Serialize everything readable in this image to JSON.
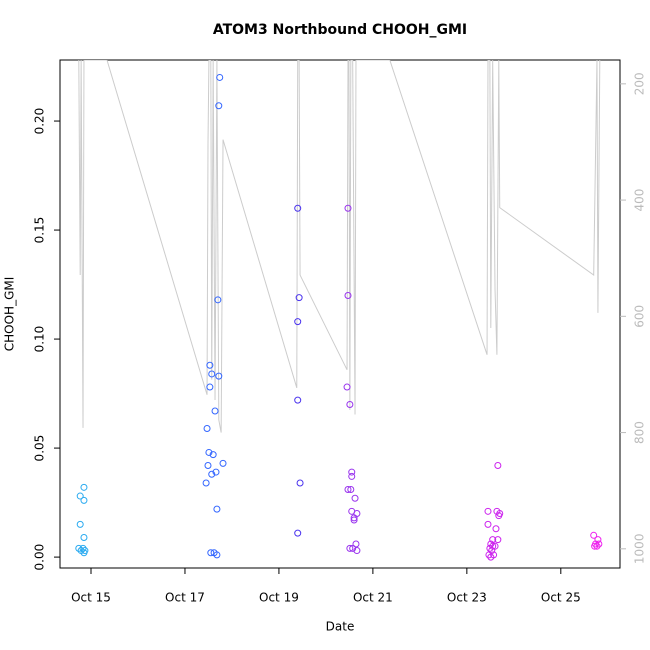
{
  "chart_data": {
    "type": "scatter",
    "title": "ATOM3 Northbound CHOOH_GMI",
    "x_label": "Date",
    "y_label": "CHOOH_GMI",
    "xlim": [
      14.34,
      26.26
    ],
    "xticks": [
      {
        "value": 15,
        "label": "Oct 15"
      },
      {
        "value": 17,
        "label": "Oct 17"
      },
      {
        "value": 19,
        "label": "Oct 19"
      },
      {
        "value": 21,
        "label": "Oct 21"
      },
      {
        "value": 23,
        "label": "Oct 23"
      },
      {
        "value": 25,
        "label": "Oct 25"
      }
    ],
    "ylim": [
      -0.005,
      0.228
    ],
    "yticks": [
      {
        "value": 0,
        "label": "0.00"
      },
      0.05,
      {
        "value": 0.1,
        "label": "0.10"
      },
      0.15,
      {
        "value": 0.2,
        "label": "0.20"
      }
    ],
    "y2lim": [
      1033,
      159
    ],
    "y2ticks": [
      200,
      400,
      600,
      800,
      1000
    ],
    "series": [
      {
        "color": "#29aaf0",
        "x": [
          14.77,
          14.85,
          14.85,
          14.77,
          14.85,
          14.74,
          14.79,
          14.83,
          14.87,
          14.85
        ],
        "values": [
          0.028,
          0.032,
          0.026,
          0.015,
          0.009,
          0.004,
          0.003,
          0.004,
          0.003,
          0.002
        ]
      },
      {
        "color": "#3366ff",
        "x": [
          17.74,
          17.72,
          17.7,
          17.53,
          17.57,
          17.72,
          17.53,
          17.64,
          17.47,
          17.51,
          17.6,
          17.49,
          17.81,
          17.66,
          17.57,
          17.45,
          17.68,
          17.55,
          17.62,
          17.68
        ],
        "values": [
          0.22,
          0.207,
          0.118,
          0.088,
          0.084,
          0.083,
          0.078,
          0.067,
          0.059,
          0.048,
          0.047,
          0.042,
          0.043,
          0.039,
          0.038,
          0.034,
          0.022,
          0.002,
          0.002,
          0.001
        ]
      },
      {
        "color": "#4a33ee",
        "x": [
          19.4,
          19.43,
          19.4,
          19.4,
          19.45,
          19.4
        ],
        "values": [
          0.16,
          0.119,
          0.108,
          0.072,
          0.034,
          0.011
        ]
      },
      {
        "color": "#9933ee",
        "x": [
          20.47,
          20.47,
          20.45,
          20.51,
          20.55,
          20.55,
          20.47,
          20.53,
          20.62,
          20.55,
          20.66,
          20.6,
          20.6,
          20.64,
          20.51,
          20.57,
          20.66
        ],
        "values": [
          0.16,
          0.12,
          0.078,
          0.07,
          0.039,
          0.037,
          0.031,
          0.031,
          0.027,
          0.021,
          0.02,
          0.018,
          0.017,
          0.006,
          0.004,
          0.004,
          0.003
        ]
      },
      {
        "color": "#cc22ee",
        "x": [
          23.66,
          23.45,
          23.64,
          23.7,
          23.68,
          23.45,
          23.62,
          23.55,
          23.66,
          23.51,
          23.55,
          23.6,
          23.49,
          23.53,
          23.47,
          23.51,
          23.57
        ],
        "values": [
          0.042,
          0.021,
          0.021,
          0.02,
          0.019,
          0.015,
          0.013,
          0.008,
          0.008,
          0.006,
          0.005,
          0.005,
          0.004,
          0.003,
          0.001,
          0.0,
          0.001
        ]
      },
      {
        "color": "#ee22ee",
        "x": [
          25.7,
          25.79,
          25.81,
          25.74,
          25.77,
          25.72
        ],
        "values": [
          0.01,
          0.008,
          0.006,
          0.006,
          0.005,
          0.005
        ]
      }
    ],
    "line": {
      "axis": "y2",
      "color": "#cccccc",
      "x": [
        14.74,
        14.77,
        14.79,
        14.83,
        14.85,
        15.34,
        17.47,
        17.49,
        17.51,
        17.55,
        17.57,
        17.6,
        17.64,
        17.68,
        17.72,
        17.77,
        17.81,
        19.38,
        19.4,
        19.43,
        19.45,
        20.45,
        20.47,
        20.49,
        20.51,
        20.53,
        20.57,
        20.62,
        20.64,
        21.36,
        23.43,
        23.45,
        23.49,
        23.51,
        23.55,
        23.6,
        23.64,
        23.68,
        23.7,
        25.7,
        25.77,
        25.79,
        25.83
      ],
      "values": [
        159,
        529,
        159,
        792,
        159,
        159,
        735,
        305,
        159,
        159,
        709,
        159,
        744,
        159,
        778,
        800,
        296,
        723,
        159,
        159,
        529,
        692,
        159,
        159,
        761,
        159,
        159,
        769,
        159,
        159,
        666,
        159,
        159,
        620,
        159,
        554,
        666,
        159,
        413,
        529,
        159,
        594,
        159
      ]
    }
  }
}
